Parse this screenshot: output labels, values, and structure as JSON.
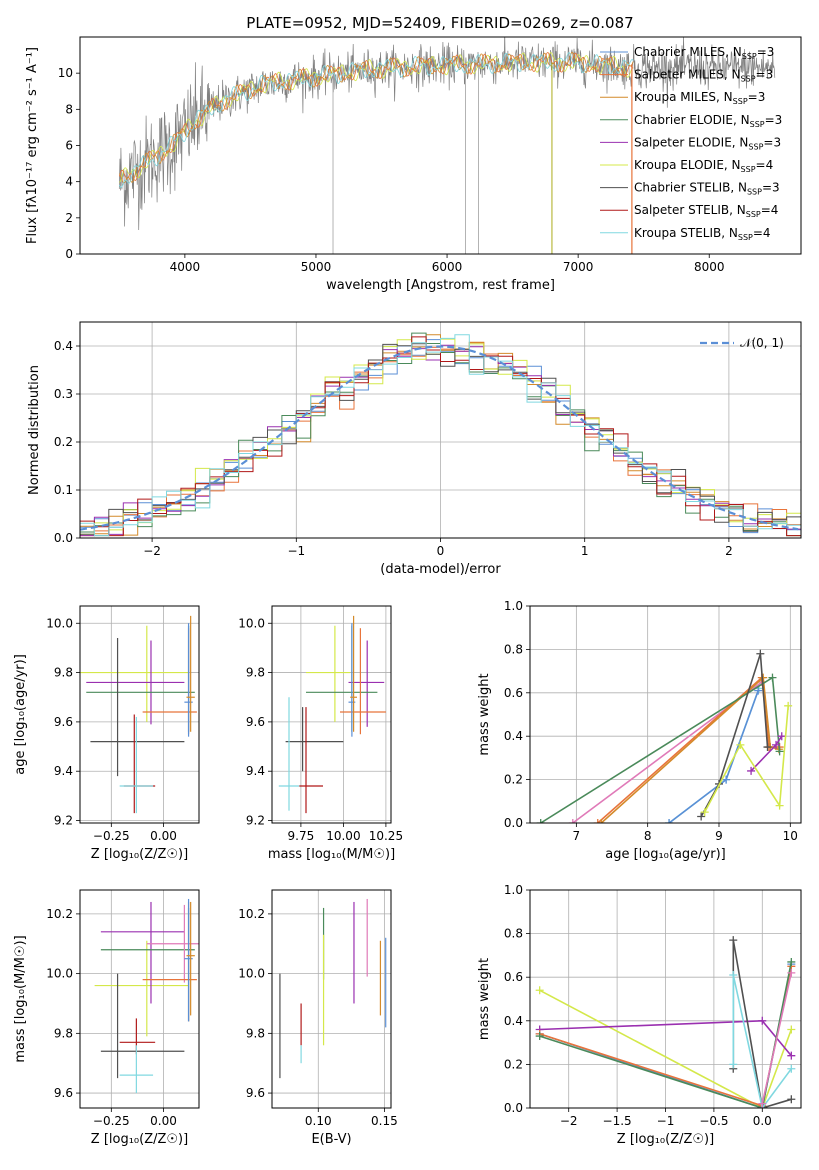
{
  "figure_title": "PLATE=0952, MJD=52409, FIBERID=0269, z=0.087",
  "colors": {
    "Chabrier MILES": "#5b8fd6",
    "Salpeter MILES": "#e8743b",
    "Kroupa MILES": "#d48a2a",
    "Chabrier ELODIE": "#4a8a5a",
    "Salpeter ELODIE": "#9a30b0",
    "Kroupa ELODIE": "#d4e84a",
    "Chabrier STELIB": "#505050",
    "Salpeter STELIB": "#b01818",
    "Kroupa STELIB": "#80d8e0",
    "pink": "#e07ab8",
    "normal": "#5b8fd6"
  },
  "chart_data": [
    {
      "id": "spectrum",
      "type": "line",
      "title": "PLATE=0952, MJD=52409, FIBERID=0269, z=0.087",
      "xlabel": "wavelength [Angstrom, rest frame]",
      "ylabel": "Flux [fλ10⁻¹⁷ erg cm⁻² s⁻¹ A⁻¹]",
      "xlim": [
        3200,
        8700
      ],
      "ylim": [
        0,
        12
      ],
      "xticks": [
        4000,
        5000,
        6000,
        7000,
        8000
      ],
      "yticks": [
        0,
        2,
        4,
        6,
        8,
        10
      ],
      "legend_position": "right",
      "legend": [
        {
          "label": "Chabrier MILES, N",
          "sub": "SSP",
          "tail": "=3"
        },
        {
          "label": "Salpeter MILES, N",
          "sub": "SSP",
          "tail": "=3"
        },
        {
          "label": "Kroupa MILES, N",
          "sub": "SSP",
          "tail": "=3"
        },
        {
          "label": "Chabrier ELODIE, N",
          "sub": "SSP",
          "tail": "=3"
        },
        {
          "label": "Salpeter ELODIE, N",
          "sub": "SSP",
          "tail": "=3"
        },
        {
          "label": "Kroupa ELODIE, N",
          "sub": "SSP",
          "tail": "=4"
        },
        {
          "label": "Chabrier STELIB, N",
          "sub": "SSP",
          "tail": "=3"
        },
        {
          "label": "Salpeter STELIB, N",
          "sub": "SSP",
          "tail": "=4"
        },
        {
          "label": "Kroupa STELIB, N",
          "sub": "SSP",
          "tail": "=4"
        }
      ],
      "series_data_profile": {
        "x": [
          3500,
          3700,
          3900,
          4100,
          4300,
          4600,
          5000,
          5400,
          5800,
          6200,
          6600,
          7000,
          7400
        ],
        "y": [
          4.0,
          5.0,
          6.0,
          7.5,
          8.5,
          9.4,
          9.8,
          10.2,
          10.4,
          10.5,
          10.6,
          10.6,
          10.3
        ]
      },
      "vertical_lines": [
        5130,
        6140,
        6240,
        6800,
        7410
      ]
    },
    {
      "id": "residuals",
      "type": "histogram",
      "xlabel": "(data-model)/error",
      "ylabel": "Normed distribution",
      "xlim": [
        -2.5,
        2.5
      ],
      "ylim": [
        0,
        0.45
      ],
      "xticks": [
        -2,
        -1,
        0,
        1,
        2
      ],
      "yticks": [
        0.0,
        0.1,
        0.2,
        0.3,
        0.4
      ],
      "legend": [
        "𝒩(0, 1)"
      ],
      "legend_position": "top-right",
      "bin_width": 0.1
    },
    {
      "id": "age_vs_Z",
      "type": "errorbar",
      "xlabel": "Z [log₁₀(Z/Z☉)]",
      "ylabel": "age  [log₁₀(age/yr)]",
      "xlim": [
        -0.4,
        0.17
      ],
      "ylim": [
        9.19,
        10.07
      ],
      "xticks": [
        -0.25,
        0.0
      ],
      "yticks": [
        9.2,
        9.4,
        9.6,
        9.8,
        10.0
      ],
      "points": [
        {
          "s": "Kroupa ELODIE",
          "x": -0.08,
          "y": 9.8,
          "xe": [
            -0.4,
            0.12
          ],
          "ye": [
            9.6,
            9.99
          ]
        },
        {
          "s": "Salpeter ELODIE",
          "x": -0.06,
          "y": 9.76,
          "xe": [
            -0.37,
            0.1
          ],
          "ye": [
            9.59,
            9.93
          ]
        },
        {
          "s": "Chabrier ELODIE",
          "x": 0.12,
          "y": 9.72,
          "xe": [
            -0.37,
            0.15
          ],
          "ye": [
            9.56,
            9.99
          ]
        },
        {
          "s": "Salpeter MILES",
          "x": 0.12,
          "y": 9.64,
          "xe": [
            -0.1,
            0.16
          ],
          "ye": [
            9.55,
            9.98
          ]
        },
        {
          "s": "Chabrier MILES",
          "x": 0.12,
          "y": 9.68,
          "xe": [
            0.1,
            0.14
          ],
          "ye": [
            9.54,
            10.0
          ]
        },
        {
          "s": "Kroupa MILES",
          "x": 0.13,
          "y": 9.7,
          "xe": [
            0.11,
            0.15
          ],
          "ye": [
            9.56,
            10.03
          ]
        },
        {
          "s": "Chabrier STELIB",
          "x": -0.22,
          "y": 9.52,
          "xe": [
            -0.35,
            0.1
          ],
          "ye": [
            9.38,
            9.94
          ]
        },
        {
          "s": "Salpeter STELIB",
          "x": -0.14,
          "y": 9.34,
          "xe": [
            -0.19,
            -0.04
          ],
          "ye": [
            9.23,
            9.63
          ]
        },
        {
          "s": "Kroupa STELIB",
          "x": -0.13,
          "y": 9.34,
          "xe": [
            -0.21,
            -0.05
          ],
          "ye": [
            9.23,
            9.62
          ]
        }
      ]
    },
    {
      "id": "age_vs_mass",
      "type": "errorbar",
      "xlabel": "mass [log₁₀(M/M☉)]",
      "ylabel": "",
      "xlim": [
        9.58,
        10.28
      ],
      "ylim": [
        9.19,
        10.07
      ],
      "xticks": [
        9.75,
        10.0,
        10.25
      ],
      "yticks": [
        9.2,
        9.4,
        9.6,
        9.8,
        10.0
      ],
      "points": [
        {
          "s": "Kroupa ELODIE",
          "x": 9.95,
          "y": 9.8,
          "xe": [
            9.78,
            10.04
          ],
          "ye": [
            9.6,
            9.99
          ]
        },
        {
          "s": "Salpeter ELODIE",
          "x": 10.14,
          "y": 9.76,
          "xe": [
            10.03,
            10.24
          ],
          "ye": [
            9.58,
            9.93
          ]
        },
        {
          "s": "Chabrier ELODIE",
          "x": 10.05,
          "y": 9.72,
          "xe": [
            9.78,
            10.2
          ],
          "ye": [
            9.56,
            9.99
          ]
        },
        {
          "s": "Salpeter MILES",
          "x": 10.1,
          "y": 9.64,
          "xe": [
            9.98,
            10.25
          ],
          "ye": [
            9.55,
            9.98
          ]
        },
        {
          "s": "Chabrier MILES",
          "x": 10.05,
          "y": 9.68,
          "xe": [
            10.03,
            10.07
          ],
          "ye": [
            9.54,
            10.0
          ]
        },
        {
          "s": "Kroupa MILES",
          "x": 10.06,
          "y": 9.7,
          "xe": [
            10.04,
            10.08
          ],
          "ye": [
            9.56,
            10.03
          ]
        },
        {
          "s": "Chabrier STELIB",
          "x": 9.76,
          "y": 9.52,
          "xe": [
            9.66,
            10.0
          ],
          "ye": [
            9.4,
            9.66
          ]
        },
        {
          "s": "Salpeter STELIB",
          "x": 9.78,
          "y": 9.34,
          "xe": [
            9.74,
            9.88
          ],
          "ye": [
            9.23,
            9.66
          ]
        },
        {
          "s": "Kroupa STELIB",
          "x": 9.68,
          "y": 9.34,
          "xe": [
            9.62,
            9.74
          ],
          "ye": [
            9.24,
            9.7
          ]
        }
      ]
    },
    {
      "id": "weight_vs_age",
      "type": "line",
      "xlabel": "age  [log₁₀(age/yr)]",
      "ylabel": "mass weight",
      "xlim": [
        6.35,
        10.15
      ],
      "ylim": [
        0,
        1
      ],
      "xticks": [
        7,
        8,
        9,
        10
      ],
      "yticks": [
        0.0,
        0.2,
        0.4,
        0.6,
        0.8,
        1.0
      ],
      "series": [
        {
          "s": "Kroupa STELIB",
          "x": [
            8.3,
            9.1,
            9.56
          ],
          "y": [
            0.0,
            0.2,
            0.62
          ]
        },
        {
          "s": "Chabrier MILES",
          "x": [
            8.3,
            9.1,
            9.55
          ],
          "y": [
            0.0,
            0.2,
            0.61
          ]
        },
        {
          "s": "pink",
          "x": [
            6.95,
            9.6
          ],
          "y": [
            0.0,
            0.65
          ]
        },
        {
          "s": "Salpeter MILES",
          "x": [
            7.3,
            9.6,
            9.7,
            9.85
          ],
          "y": [
            0.0,
            0.67,
            0.35,
            0.35
          ]
        },
        {
          "s": "Kroupa MILES",
          "x": [
            7.35,
            9.62,
            9.72,
            9.84
          ],
          "y": [
            0.0,
            0.67,
            0.35,
            0.34
          ]
        },
        {
          "s": "Chabrier ELODIE",
          "x": [
            6.5,
            9.75,
            9.85
          ],
          "y": [
            0.0,
            0.67,
            0.33
          ]
        },
        {
          "s": "Chabrier STELIB",
          "x": [
            8.75,
            9.0,
            9.58,
            9.68
          ],
          "y": [
            0.03,
            0.18,
            0.78,
            0.35
          ]
        },
        {
          "s": "Salpeter ELODIE",
          "x": [
            9.45,
            9.8,
            9.88
          ],
          "y": [
            0.24,
            0.36,
            0.4
          ]
        },
        {
          "s": "Kroupa ELODIE",
          "x": [
            8.8,
            9.3,
            9.85,
            9.97
          ],
          "y": [
            0.05,
            0.36,
            0.08,
            0.54
          ]
        }
      ]
    },
    {
      "id": "mass_vs_Z",
      "type": "errorbar",
      "xlabel": "Z [log₁₀(Z/Z☉)]",
      "ylabel": "mass [log₁₀(M/M☉)]",
      "xlim": [
        -0.4,
        0.17
      ],
      "ylim": [
        9.55,
        10.28
      ],
      "xticks": [
        -0.25,
        0.0
      ],
      "yticks": [
        9.6,
        9.8,
        10.0,
        10.2
      ],
      "points": [
        {
          "s": "Kroupa ELODIE",
          "x": -0.08,
          "y": 9.96,
          "xe": [
            -0.33,
            0.12
          ],
          "ye": [
            9.79,
            10.11
          ]
        },
        {
          "s": "Salpeter ELODIE",
          "x": -0.06,
          "y": 10.14,
          "xe": [
            -0.3,
            0.1
          ],
          "ye": [
            9.9,
            10.24
          ]
        },
        {
          "s": "Chabrier ELODIE",
          "x": 0.12,
          "y": 10.08,
          "xe": [
            -0.3,
            0.15
          ],
          "ye": [
            9.84,
            10.22
          ]
        },
        {
          "s": "pink",
          "x": 0.1,
          "y": 10.1,
          "xe": [
            -0.08,
            0.17
          ],
          "ye": [
            9.97,
            10.23
          ]
        },
        {
          "s": "Salpeter MILES",
          "x": 0.12,
          "y": 9.98,
          "xe": [
            -0.1,
            0.16
          ],
          "ye": [
            9.84,
            10.24
          ]
        },
        {
          "s": "Chabrier MILES",
          "x": 0.12,
          "y": 10.05,
          "xe": [
            0.1,
            0.14
          ],
          "ye": [
            9.84,
            10.25
          ]
        },
        {
          "s": "Kroupa MILES",
          "x": 0.13,
          "y": 10.06,
          "xe": [
            0.11,
            0.15
          ],
          "ye": [
            9.86,
            10.24
          ]
        },
        {
          "s": "Chabrier STELIB",
          "x": -0.22,
          "y": 9.74,
          "xe": [
            -0.3,
            0.1
          ],
          "ye": [
            9.65,
            10.0
          ]
        },
        {
          "s": "Salpeter STELIB",
          "x": -0.13,
          "y": 9.77,
          "xe": [
            -0.21,
            -0.04
          ],
          "ye": [
            9.73,
            9.85
          ]
        },
        {
          "s": "Kroupa STELIB",
          "x": -0.13,
          "y": 9.66,
          "xe": [
            -0.21,
            -0.05
          ],
          "ye": [
            9.6,
            9.76
          ]
        }
      ]
    },
    {
      "id": "mass_vs_ebv",
      "type": "errorbar",
      "xlabel": "E(B-V)",
      "ylabel": "",
      "xlim": [
        0.065,
        0.155
      ],
      "ylim": [
        9.55,
        10.28
      ],
      "xticks": [
        0.1,
        0.15
      ],
      "yticks": [
        9.6,
        9.8,
        10.0,
        10.2
      ],
      "points": [
        {
          "s": "Chabrier STELIB",
          "x": 0.071,
          "y": 9.8,
          "ye": [
            9.65,
            10.0
          ]
        },
        {
          "s": "Salpeter STELIB",
          "x": 0.087,
          "y": 9.82,
          "ye": [
            9.76,
            9.9
          ]
        },
        {
          "s": "Kroupa STELIB",
          "x": 0.087,
          "y": 9.72,
          "ye": [
            9.7,
            9.76
          ]
        },
        {
          "s": "Chabrier ELODIE",
          "x": 0.104,
          "y": 10.1,
          "ye": [
            9.98,
            10.22
          ]
        },
        {
          "s": "Kroupa ELODIE",
          "x": 0.104,
          "y": 9.96,
          "ye": [
            9.76,
            10.13
          ]
        },
        {
          "s": "Salpeter ELODIE",
          "x": 0.127,
          "y": 10.1,
          "ye": [
            9.9,
            10.24
          ]
        },
        {
          "s": "pink",
          "x": 0.137,
          "y": 10.12,
          "ye": [
            9.99,
            10.25
          ]
        },
        {
          "s": "Kroupa MILES",
          "x": 0.147,
          "y": 9.98,
          "ye": [
            9.86,
            10.11
          ]
        },
        {
          "s": "Chabrier MILES",
          "x": 0.151,
          "y": 10.0,
          "ye": [
            9.82,
            10.12
          ]
        }
      ]
    },
    {
      "id": "weight_vs_Z",
      "type": "line",
      "xlabel": "Z [log₁₀(Z/Z☉)]",
      "ylabel": "mass weight",
      "xlim": [
        -2.4,
        0.4
      ],
      "ylim": [
        0,
        1
      ],
      "xticks": [
        -2.0,
        -1.5,
        -1.0,
        -0.5,
        0.0
      ],
      "yticks": [
        0.0,
        0.2,
        0.4,
        0.6,
        0.8,
        1.0
      ],
      "series": [
        {
          "s": "Kroupa ELODIE",
          "x": [
            -2.3,
            0.0,
            0.3
          ],
          "y": [
            0.54,
            0.0,
            0.36
          ]
        },
        {
          "s": "Salpeter ELODIE",
          "x": [
            -2.3,
            0.0,
            0.3
          ],
          "y": [
            0.36,
            0.4,
            0.24
          ]
        },
        {
          "s": "Chabrier MILES",
          "x": [
            -2.3,
            0.0,
            0.3
          ],
          "y": [
            0.34,
            0.0,
            0.66
          ]
        },
        {
          "s": "Salpeter MILES",
          "x": [
            -2.3,
            0.0,
            0.3
          ],
          "y": [
            0.34,
            0.01,
            0.65
          ]
        },
        {
          "s": "Chabrier ELODIE",
          "x": [
            -2.3,
            0.0,
            0.3
          ],
          "y": [
            0.33,
            0.0,
            0.67
          ]
        },
        {
          "s": "Chabrier STELIB",
          "x": [
            -0.3,
            -0.3,
            0.0,
            0.3
          ],
          "y": [
            0.18,
            0.77,
            0.0,
            0.04
          ]
        },
        {
          "s": "Kroupa STELIB",
          "x": [
            -0.3,
            -0.3,
            0.0,
            0.3
          ],
          "y": [
            0.2,
            0.61,
            0.0,
            0.18
          ]
        },
        {
          "s": "pink",
          "x": [
            0.0,
            0.3
          ],
          "y": [
            0.02,
            0.62
          ]
        }
      ]
    }
  ]
}
